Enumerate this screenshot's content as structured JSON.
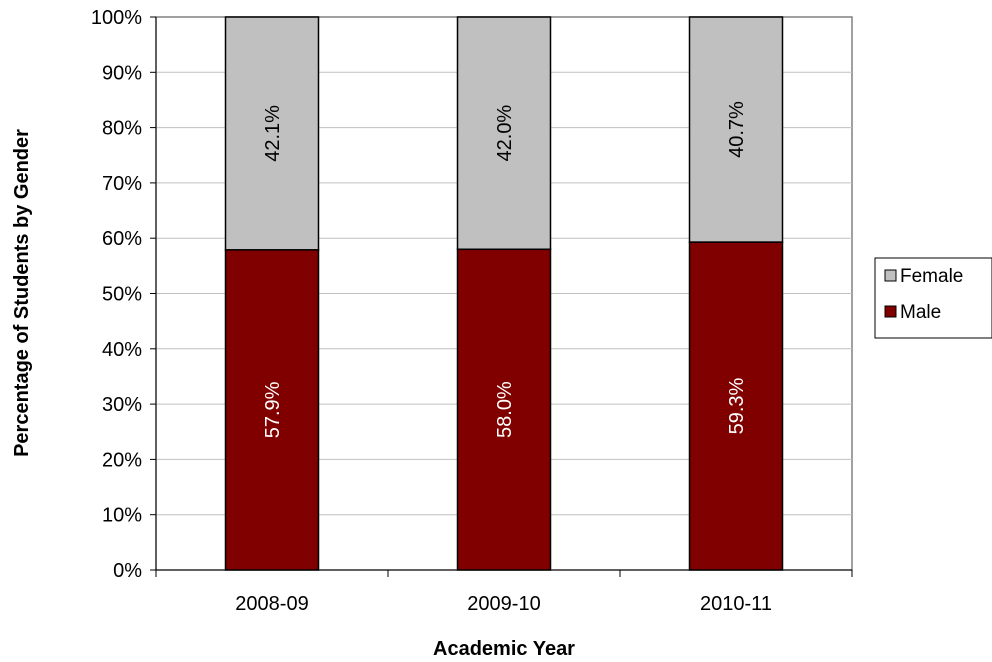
{
  "chart_data": {
    "type": "bar",
    "stacked": true,
    "percent_stacked": true,
    "categories": [
      "2008-09",
      "2009-10",
      "2010-11"
    ],
    "series": [
      {
        "name": "Male",
        "values": [
          57.9,
          58.0,
          59.3
        ],
        "labels": [
          "57.9%",
          "58.0%",
          "59.3%"
        ],
        "color": "#800000",
        "label_color": "#ffffff"
      },
      {
        "name": "Female",
        "values": [
          42.1,
          42.0,
          40.7
        ],
        "labels": [
          "42.1%",
          "42.0%",
          "40.7%"
        ],
        "color": "#c0c0c0",
        "label_color": "#000000"
      }
    ],
    "title": "",
    "xlabel": "Academic Year",
    "ylabel": "Percentage of Students by Gender",
    "ylim": [
      0,
      100
    ],
    "yticks": [
      "0%",
      "10%",
      "20%",
      "30%",
      "40%",
      "50%",
      "60%",
      "70%",
      "80%",
      "90%",
      "100%"
    ],
    "grid": true,
    "grid_color": "#c0c0c0",
    "legend": {
      "placement": "right",
      "entries": [
        "Female",
        "Male"
      ]
    }
  }
}
